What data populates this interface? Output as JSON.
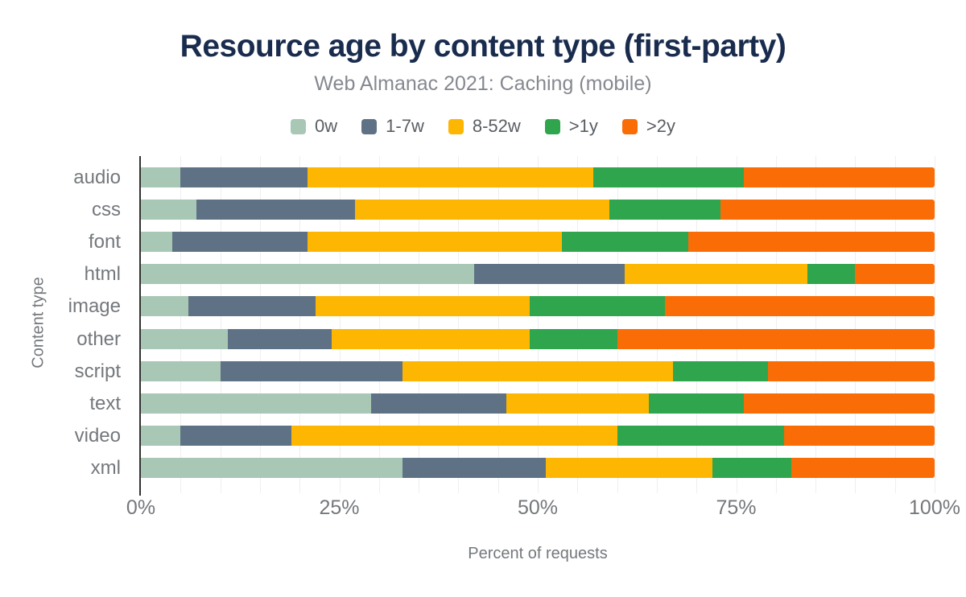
{
  "header": {
    "title": "Resource age by content type (first-party)",
    "subtitle": "Web Almanac 2021: Caching (mobile)"
  },
  "legend": [
    {
      "label": "0w",
      "color": "#a8c7b5"
    },
    {
      "label": "1-7w",
      "color": "#5f7285"
    },
    {
      "label": "8-52w",
      "color": "#fdb602"
    },
    {
      "label": ">1y",
      "color": "#2fa64d"
    },
    {
      "label": ">2y",
      "color": "#fa6c06"
    }
  ],
  "chart_data": {
    "type": "bar",
    "orientation": "horizontal",
    "stacked": true,
    "title": "Resource age by content type (first-party)",
    "subtitle": "Web Almanac 2021: Caching (mobile)",
    "xlabel": "Percent of requests",
    "ylabel": "Content type",
    "xlim": [
      0,
      100
    ],
    "x_ticks": [
      {
        "label": "0%",
        "position": 0
      },
      {
        "label": "25%",
        "position": 25
      },
      {
        "label": "50%",
        "position": 50
      },
      {
        "label": "75%",
        "position": 75
      },
      {
        "label": "100%",
        "position": 100
      }
    ],
    "grid_interval_percent": 5,
    "grid_on": true,
    "legend_position": "top",
    "categories": [
      "audio",
      "css",
      "font",
      "html",
      "image",
      "other",
      "script",
      "text",
      "video",
      "xml"
    ],
    "series": [
      {
        "name": "0w",
        "color": "#a8c7b5",
        "values": [
          5,
          7,
          4,
          42,
          6,
          11,
          10,
          29,
          5,
          33
        ]
      },
      {
        "name": "1-7w",
        "color": "#5f7285",
        "values": [
          16,
          20,
          17,
          19,
          16,
          13,
          23,
          17,
          14,
          18
        ]
      },
      {
        "name": "8-52w",
        "color": "#fdb602",
        "values": [
          36,
          32,
          32,
          23,
          27,
          25,
          34,
          18,
          41,
          21
        ]
      },
      {
        "name": ">1y",
        "color": "#2fa64d",
        "values": [
          19,
          14,
          16,
          6,
          17,
          11,
          12,
          12,
          21,
          10
        ]
      },
      {
        "name": ">2y",
        "color": "#fa6c06",
        "values": [
          24,
          27,
          31,
          10,
          34,
          40,
          21,
          24,
          19,
          18
        ]
      }
    ]
  },
  "style": {
    "title_color": "#1a2c4e",
    "subtitle_color": "#85898f",
    "axis_text_color": "#74787c",
    "gridline_color": "#efefef",
    "axis_line_color": "#333333",
    "background": "#ffffff"
  }
}
